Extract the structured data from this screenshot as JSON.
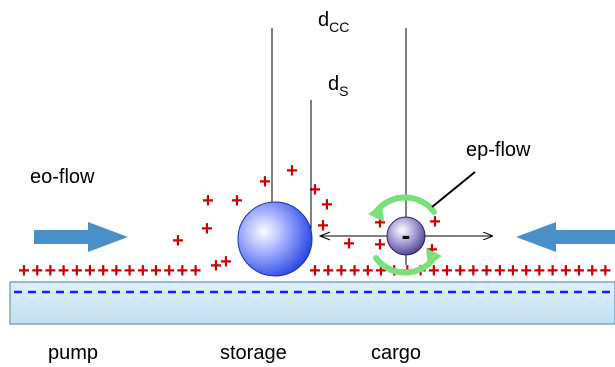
{
  "labels": {
    "d_cc_main": "d",
    "d_cc_sub": "CC",
    "d_s_main": "d",
    "d_s_sub": "S",
    "eo_flow": "eo-flow",
    "ep_flow": "ep-flow",
    "pump": "pump",
    "storage": "storage",
    "cargo": "cargo"
  },
  "symbols": {
    "plus": "+",
    "minus": "-"
  },
  "colors": {
    "charge_plus": "#cc0000",
    "charge_minus": "#0000cc",
    "flow_arrow": "#4a90c8",
    "rotation_arrow": "#6dd66d",
    "substrate_fill": "#cfe8f5",
    "substrate_stroke": "#7aa6c2",
    "sphere_storage": "#3355ff",
    "sphere_cargo": "#6655aa"
  },
  "icons": {
    "left_arrow": "arrow-right-icon",
    "right_arrow": "arrow-left-icon",
    "rotation": "rotation-arrow-icon"
  }
}
